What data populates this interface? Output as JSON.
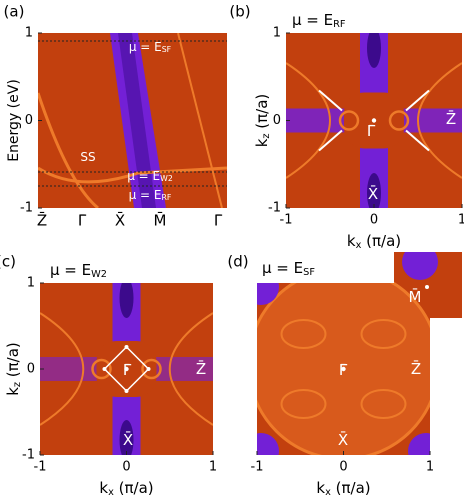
{
  "chart_data": [
    {
      "type": "heatmap",
      "panel": "(a)",
      "ylabel": "Energy (eV)",
      "categories": [
        "Z̄",
        "Γ̄",
        "X̄",
        "M̄",
        "Γ̄"
      ],
      "ylim": [
        -1,
        1
      ],
      "yticks": [
        1,
        0,
        -1
      ],
      "annotations": [
        {
          "text": "μ = E",
          "sub": "SF"
        },
        {
          "text": "μ = E",
          "sub": "W2"
        },
        {
          "text": "μ = E",
          "sub": "RF"
        },
        {
          "text": "SS"
        }
      ]
    },
    {
      "type": "heatmap",
      "panel": "(b)",
      "title": {
        "text": "μ = E",
        "sub": "RF"
      },
      "xlabel": {
        "text": "k",
        "sub": "x",
        "rest": " (π/a)"
      },
      "ylabel": {
        "text": "k",
        "sub": "z",
        "rest": " (π/a)"
      },
      "xlim": [
        -1,
        1
      ],
      "ylim": [
        -1,
        1
      ],
      "xticks": [
        -1,
        0,
        1
      ],
      "yticks": [
        1,
        0,
        -1
      ],
      "annotations": [
        {
          "text": "Γ̄"
        },
        {
          "text": "Z̄"
        },
        {
          "text": "X̄"
        }
      ]
    },
    {
      "type": "heatmap",
      "panel": "(c)",
      "title": {
        "text": "μ = E",
        "sub": "W2"
      },
      "xlabel": {
        "text": "k",
        "sub": "x",
        "rest": " (π/a)"
      },
      "ylabel": {
        "text": "k",
        "sub": "z",
        "rest": " (π/a)"
      },
      "xlim": [
        -1,
        1
      ],
      "ylim": [
        -1,
        1
      ],
      "xticks": [
        -1,
        0,
        1
      ],
      "yticks": [
        1,
        0,
        -1
      ],
      "annotations": [
        {
          "text": "Γ̄"
        },
        {
          "text": "Z̄"
        },
        {
          "text": "X̄"
        }
      ]
    },
    {
      "type": "heatmap",
      "panel": "(d)",
      "title": {
        "text": "μ = E",
        "sub": "SF"
      },
      "xlabel": {
        "text": "k",
        "sub": "x",
        "rest": " (π/a)"
      },
      "xlim": [
        -1,
        1
      ],
      "ylim": [
        -1,
        1
      ],
      "xticks": [
        -1,
        0,
        1
      ],
      "annotations": [
        {
          "text": "Γ̄"
        },
        {
          "text": "Z̄"
        },
        {
          "text": "X̄"
        },
        {
          "text": "M̄"
        }
      ]
    }
  ]
}
